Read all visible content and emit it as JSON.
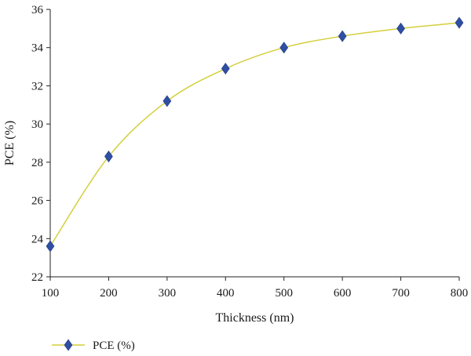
{
  "chart_data": {
    "type": "line",
    "title": "",
    "xlabel": "Thickness (nm)",
    "ylabel": "PCE (%)",
    "x": [
      100,
      200,
      300,
      400,
      500,
      600,
      700,
      800
    ],
    "xlim": [
      100,
      800
    ],
    "ylim": [
      22,
      36
    ],
    "xticks": [
      "100",
      "200",
      "300",
      "400",
      "500",
      "600",
      "700",
      "800"
    ],
    "yticks": [
      "22",
      "24",
      "26",
      "28",
      "30",
      "32",
      "34",
      "36"
    ],
    "grid": false,
    "legend_position": "bottom-left",
    "series": [
      {
        "name": "PCE (%)",
        "values": [
          23.6,
          28.3,
          31.2,
          32.9,
          34.0,
          34.6,
          35.0,
          35.3
        ],
        "line_color": "#d4cf3c",
        "marker": "diamond",
        "marker_color": "#2e4fa3"
      }
    ]
  }
}
